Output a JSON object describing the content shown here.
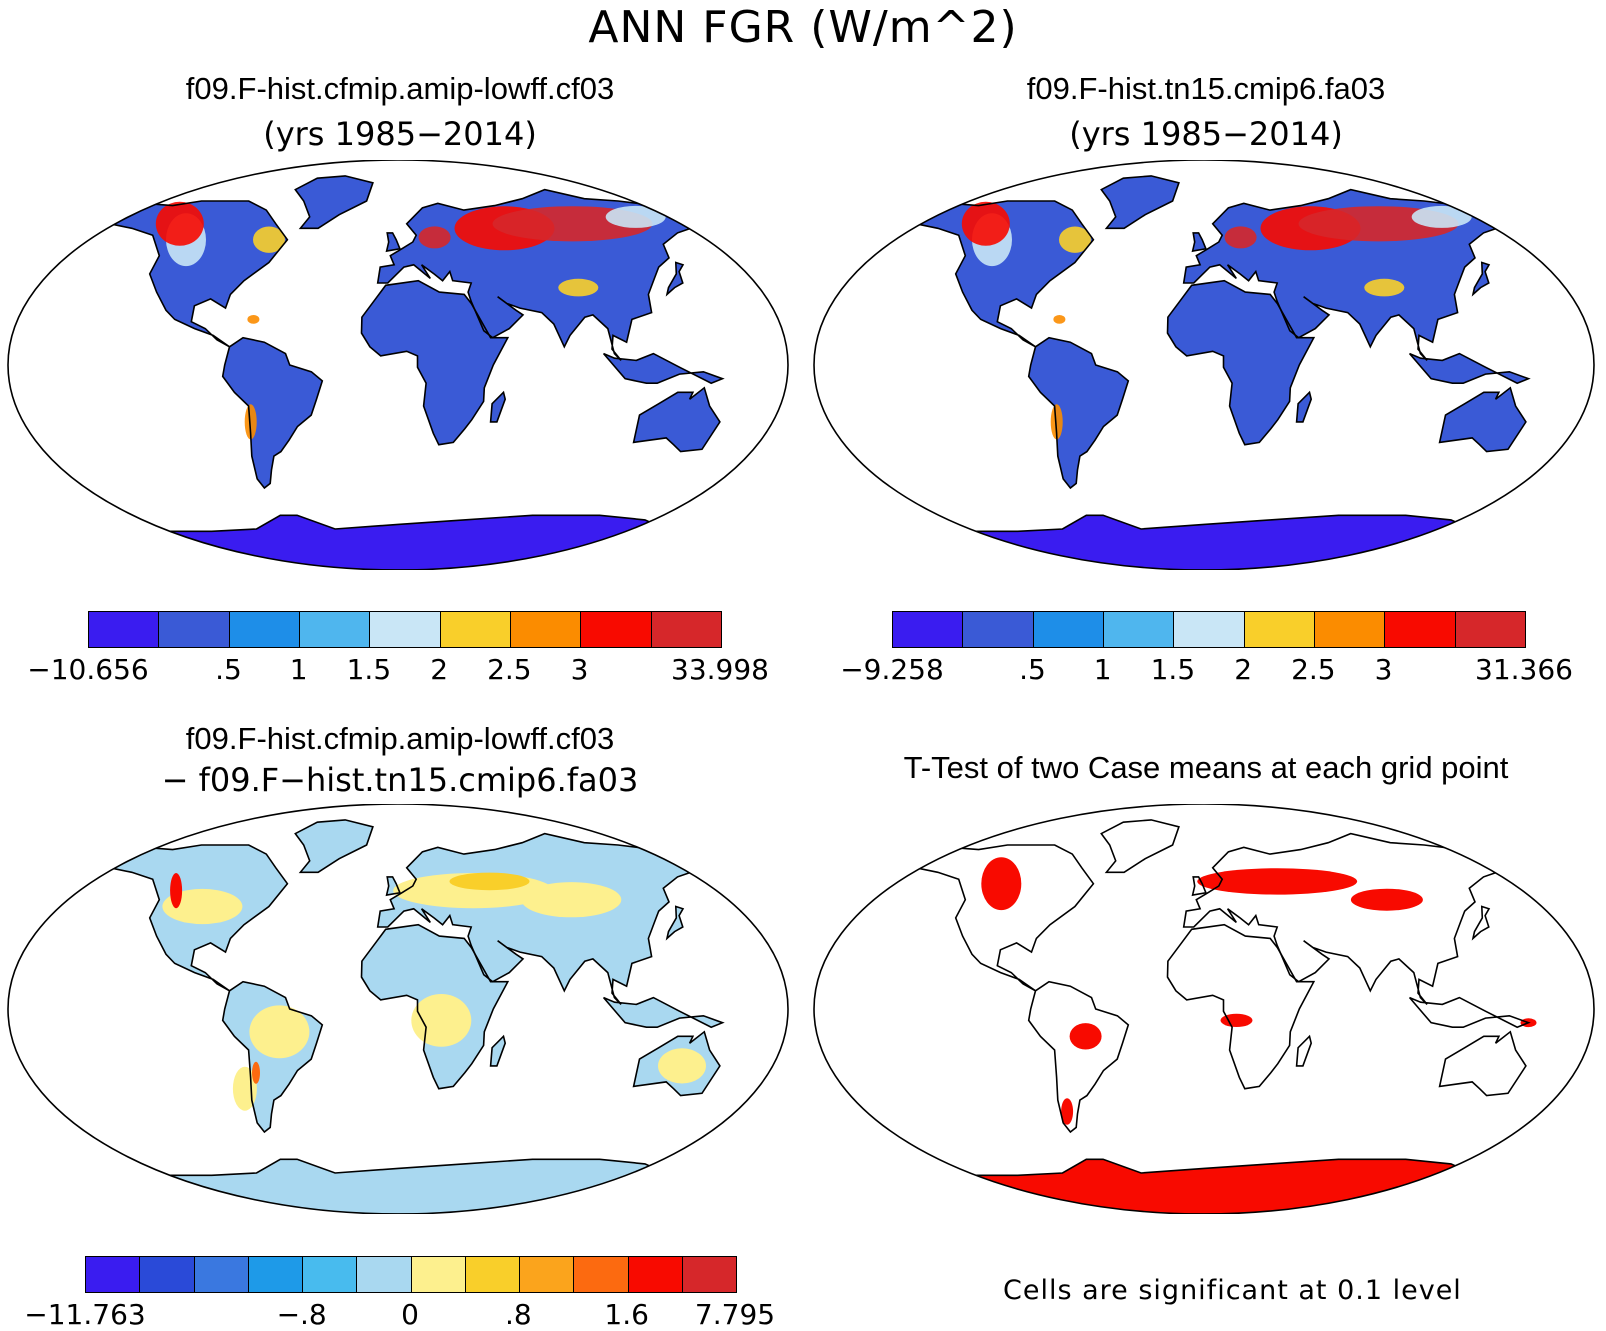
{
  "main_title": "ANN FGR (W/m^2)",
  "panels": [
    {
      "title": "f09.F-hist.cfmip.amip-lowff.cf03",
      "subtitle": "(yrs 1985−2014)"
    },
    {
      "title": "f09.F-hist.tn15.cmip6.fa03",
      "subtitle": "(yrs 1985−2014)"
    },
    {
      "title": "f09.F-hist.cfmip.amip-lowff.cf03",
      "subtitle": "− f09.F−hist.tn15.cmip6.fa03"
    },
    {
      "title": "T-Test of two Case means at each grid point",
      "subtitle": ""
    }
  ],
  "colorbars": [
    {
      "colors": [
        "#3a1cf0",
        "#3a5ad6",
        "#1e8ee8",
        "#4fb6ee",
        "#c9e6f6",
        "#f9cf2a",
        "#fb8c00",
        "#f80a00",
        "#d6272a"
      ],
      "labels": [
        "−10.656",
        ".5",
        "1",
        "1.5",
        "2",
        "2.5",
        "3",
        "33.998"
      ]
    },
    {
      "colors": [
        "#3a1cf0",
        "#3a5ad6",
        "#1e8ee8",
        "#4fb6ee",
        "#c9e6f6",
        "#f9cf2a",
        "#fb8c00",
        "#f80a00",
        "#d6272a"
      ],
      "labels": [
        "−9.258",
        ".5",
        "1",
        "1.5",
        "2",
        "2.5",
        "3",
        "31.366"
      ]
    },
    {
      "colors": [
        "#3a1cf0",
        "#2a4ad8",
        "#3a78e0",
        "#1e9ae8",
        "#48bbee",
        "#a9d8f0",
        "#fdf08e",
        "#f9cf2a",
        "#fba41c",
        "#fc6a10",
        "#f80a00",
        "#d6272a"
      ],
      "labels": [
        "−11.763",
        "−.8",
        "0",
        ".8",
        "1.6",
        "7.795"
      ]
    }
  ],
  "significance_note": "Cells are significant at 0.1 level",
  "map_colors": {
    "frame": "#000000",
    "ocean": "#ffffff",
    "panel1_base": "#3a5ad6",
    "panel2_base": "#3a5ad6",
    "diff_base": "#a9d8f0",
    "diff_warm": "#fdf08e",
    "significant": "#f80a00"
  }
}
